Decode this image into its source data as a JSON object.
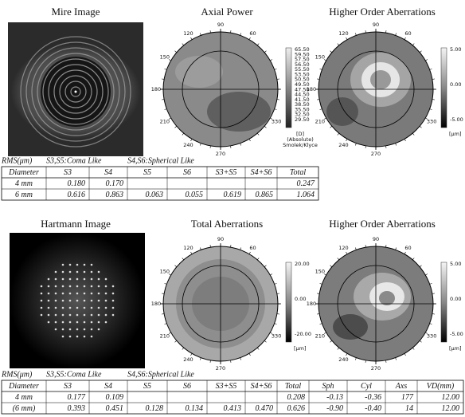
{
  "panels": [
    {
      "title": "Mire Image"
    },
    {
      "title": "Axial Power",
      "scale_labels": [
        "65.50",
        "59.50",
        "57.50",
        "56.50",
        "55.50",
        "53.50",
        "50.50",
        "49.50",
        "47.50",
        "44.50",
        "41.50",
        "38.50",
        "35.50",
        "32.50",
        "29.50"
      ],
      "unit_labels": [
        "[D]",
        "(Absolute)",
        "Smolek/Klyce"
      ]
    },
    {
      "title": "Higher Order Aberrations",
      "scale_labels": [
        "5.00",
        "0.00",
        "-5.00"
      ],
      "unit_labels": [
        "[μm]"
      ]
    },
    {
      "title": "Hartmann Image"
    },
    {
      "title": "Total Aberrations",
      "scale_labels": [
        "20.00",
        "0.00",
        "-20.00"
      ],
      "unit_labels": [
        "[μm]"
      ]
    },
    {
      "title": "Higher Order Aberrations",
      "scale_labels": [
        "5.00",
        "0.00",
        "-5.00"
      ],
      "unit_labels": [
        "[μm]"
      ]
    }
  ],
  "angle_labels": [
    90,
    60,
    120,
    150,
    180,
    210,
    240,
    270,
    330
  ],
  "tables": [
    {
      "caption": [
        "RMS(μm)",
        "S3,S5:Coma Like",
        "S4,S6:Spherical Like"
      ],
      "header": [
        "Diameter",
        "S3",
        "S4",
        "S5",
        "S6",
        "S3+S5",
        "S4+S6",
        "Total"
      ],
      "rows": [
        [
          "4 mm",
          "0.180",
          "0.170",
          null,
          null,
          null,
          null,
          "0.247"
        ],
        [
          "6 mm",
          "0.616",
          "0.863",
          "0.063",
          "0.055",
          "0.619",
          "0.865",
          "1.064"
        ]
      ]
    },
    {
      "caption": [
        "RMS(μm)",
        "S3,S5:Coma Like",
        "S4,S6:Spherical Like"
      ],
      "header": [
        "Diameter",
        "S3",
        "S4",
        "S5",
        "S6",
        "S3+S5",
        "S4+S6",
        "Total",
        "Sph",
        "Cyl",
        "Axs",
        "VD(mm)"
      ],
      "rows": [
        [
          "4 mm",
          "0.177",
          "0.109",
          null,
          null,
          null,
          null,
          "0.208",
          "-0.13",
          "-0.36",
          "177",
          "12.00"
        ],
        [
          "(6 mm)",
          "0.393",
          "0.451",
          "0.128",
          "0.134",
          "0.413",
          "0.470",
          "0.626",
          "-0.90",
          "-0.40",
          "14",
          "12.00"
        ]
      ]
    }
  ]
}
